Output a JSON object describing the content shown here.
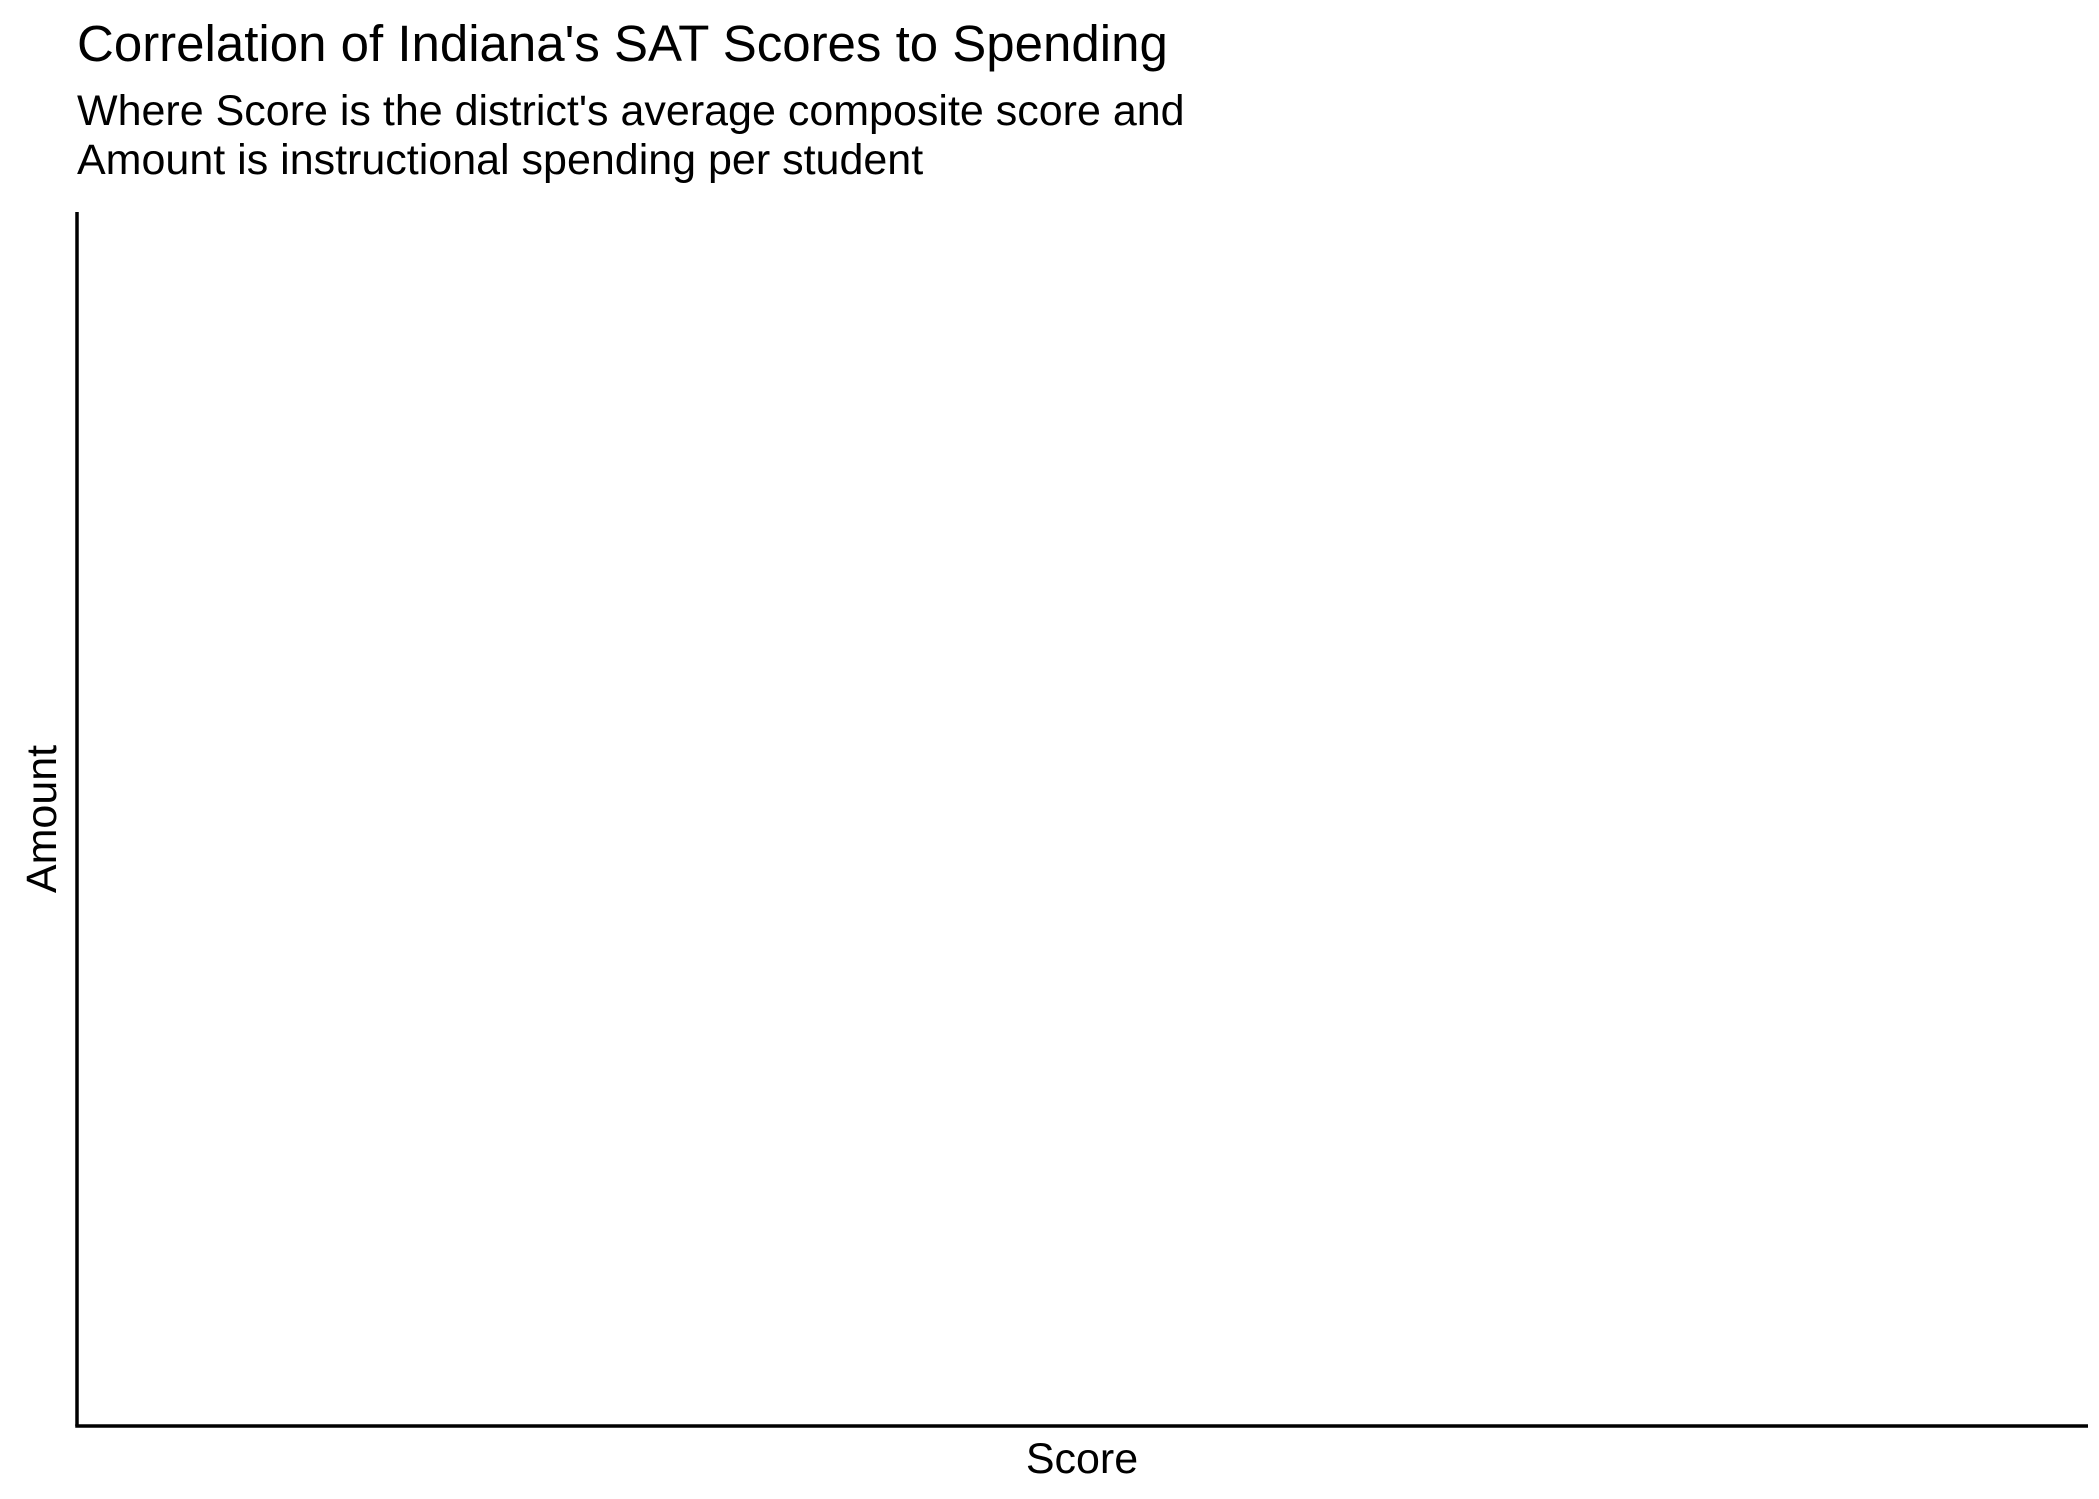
{
  "chart_data": {
    "type": "scatter",
    "title": "Correlation of Indiana's SAT Scores to Spending",
    "subtitle_lines": [
      "Where Score is the district's average composite score and",
      "Amount is instructional spending per student"
    ],
    "xlabel": "Score",
    "ylabel": "Amount",
    "x": [],
    "y": [],
    "grid": false,
    "legend": "none",
    "axis_color": "#000000",
    "background": "#ffffff"
  }
}
